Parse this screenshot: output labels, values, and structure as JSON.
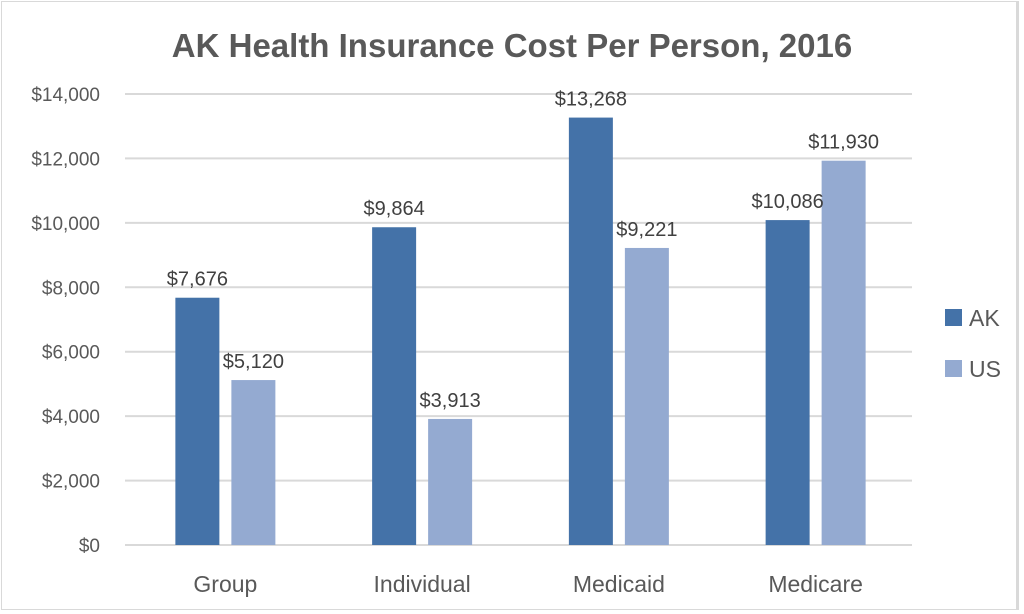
{
  "chart_data": {
    "type": "bar",
    "title": "AK Health Insurance Cost Per Person, 2016",
    "xlabel": "",
    "ylabel": "",
    "categories": [
      "Group",
      "Individual",
      "Medicaid",
      "Medicare"
    ],
    "series": [
      {
        "name": "AK",
        "color": "#4472a8",
        "values": [
          7676,
          9864,
          13268,
          10086
        ],
        "labels": [
          "$7,676",
          "$9,864",
          "$13,268",
          "$10,086"
        ]
      },
      {
        "name": "US",
        "color": "#94aad1",
        "values": [
          5120,
          3913,
          9221,
          11930
        ],
        "labels": [
          "$5,120",
          "$3,913",
          "$9,221",
          "$11,930"
        ]
      }
    ],
    "ylim": [
      0,
      14000
    ],
    "yticks": [
      0,
      2000,
      4000,
      6000,
      8000,
      10000,
      12000,
      14000
    ],
    "ytick_labels": [
      "$0",
      "$2,000",
      "$4,000",
      "$6,000",
      "$8,000",
      "$10,000",
      "$12,000",
      "$14,000"
    ],
    "grid": true,
    "gridline_color": "#d9d9d9",
    "legend_position": "right"
  }
}
